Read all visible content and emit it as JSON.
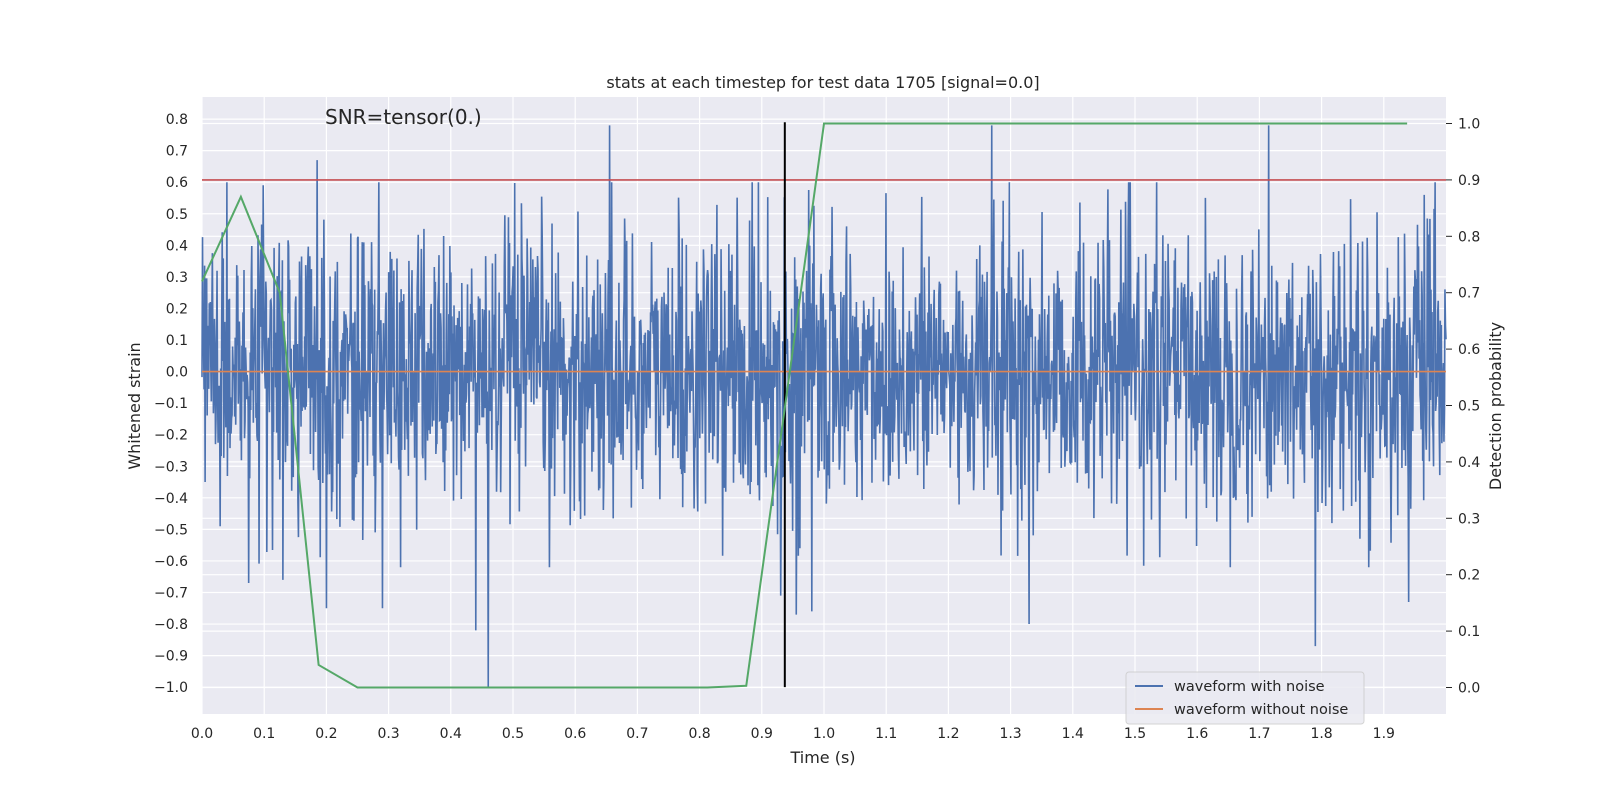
{
  "chart_data": {
    "type": "line",
    "title": "stats at each timestep for test data 1705 [signal=0.0]",
    "xlabel": "Time (s)",
    "ylabel": "Whitened strain",
    "y2label": "Detection probability",
    "annotation": "SNR=tensor(0.)",
    "xlim": [
      0.0,
      2.0
    ],
    "ylim": [
      -1.085,
      0.87
    ],
    "y2lim": [
      -0.047,
      1.047
    ],
    "xticks": [
      "0.0",
      "0.1",
      "0.2",
      "0.3",
      "0.4",
      "0.5",
      "0.6",
      "0.7",
      "0.8",
      "0.9",
      "1.0",
      "1.1",
      "1.2",
      "1.3",
      "1.4",
      "1.5",
      "1.6",
      "1.7",
      "1.8",
      "1.9"
    ],
    "yticks": [
      "0.8",
      "0.7",
      "0.6",
      "0.5",
      "0.4",
      "0.3",
      "0.2",
      "0.1",
      "0.0",
      "−0.1",
      "−0.2",
      "−0.3",
      "−0.4",
      "−0.5",
      "−0.6",
      "−0.7",
      "−0.8",
      "−0.9",
      "−1.0"
    ],
    "y2ticks": [
      "1.0",
      "0.9",
      "0.8",
      "0.7",
      "0.6",
      "0.5",
      "0.4",
      "0.3",
      "0.2",
      "0.1",
      "0.0"
    ],
    "grid": true,
    "legend_position": "lower-right",
    "colors": {
      "background": "#eaeaf2",
      "grid": "#ffffff",
      "noise": "#4c72b0",
      "clean": "#dd8452",
      "probability": "#55a868",
      "threshold": "#c44e52",
      "event_marker": "#000000"
    },
    "series": [
      {
        "name": "waveform with noise",
        "axis": "left",
        "description_values": "dense noise, about 2400 samples, mostly within ±0.5, extremes near 0.78 and −1.0",
        "samples": 2400,
        "extremes": [
          [
            0.075,
            -0.67
          ],
          [
            0.13,
            -0.66
          ],
          [
            0.185,
            0.67
          ],
          [
            0.2,
            -0.75
          ],
          [
            0.29,
            -0.75
          ],
          [
            0.46,
            -1.0
          ],
          [
            0.44,
            -0.82
          ],
          [
            0.655,
            0.78
          ],
          [
            0.93,
            -0.71
          ],
          [
            0.955,
            -0.77
          ],
          [
            0.98,
            -0.76
          ],
          [
            1.27,
            0.78
          ],
          [
            1.33,
            -0.8
          ],
          [
            1.715,
            0.78
          ],
          [
            1.79,
            -0.87
          ],
          [
            1.94,
            -0.73
          ],
          [
            1.965,
            0.56
          ]
        ]
      },
      {
        "name": "waveform without noise",
        "axis": "left",
        "x": [
          0.0,
          2.0
        ],
        "y": [
          0.0,
          0.0
        ]
      },
      {
        "axis": "right",
        "x": [
          0.0,
          0.0625,
          0.125,
          0.1875,
          0.25,
          0.3125,
          0.375,
          0.4375,
          0.5,
          0.5625,
          0.625,
          0.6875,
          0.75,
          0.8125,
          0.875,
          0.9375,
          1.0,
          1.0625,
          1.125,
          1.1875,
          1.25,
          1.3125,
          1.375,
          1.4375,
          1.5,
          1.5625,
          1.625,
          1.6875,
          1.75,
          1.8125,
          1.875,
          1.9375
        ],
        "y": [
          0.72,
          0.87,
          0.7,
          0.04,
          0.0,
          0.0,
          0.0,
          0.0,
          0.0,
          0.0,
          0.0,
          0.0,
          0.0,
          0.0,
          0.003,
          0.5,
          1.0,
          1.0,
          1.0,
          1.0,
          1.0,
          1.0,
          1.0,
          1.0,
          1.0,
          1.0,
          1.0,
          1.0,
          1.0,
          1.0,
          1.0,
          1.0
        ]
      }
    ],
    "threshold": {
      "axis": "right",
      "value": 0.9
    },
    "event_marker": {
      "x": 0.937,
      "y_range": [
        -1.0,
        0.79
      ]
    },
    "legend": [
      "waveform with noise",
      "waveform without noise"
    ]
  }
}
